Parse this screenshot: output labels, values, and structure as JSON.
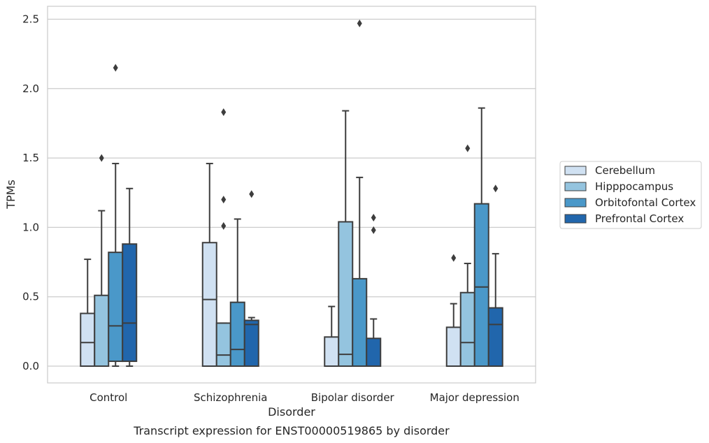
{
  "chart_data": {
    "type": "box",
    "caption": "Transcript expression for ENST00000519865 by disorder",
    "xlabel": "Disorder",
    "ylabel": "TPMs",
    "ylim": [
      -0.12,
      2.6
    ],
    "yticks": [
      "0.0",
      "0.5",
      "1.0",
      "1.5",
      "2.0",
      "2.5"
    ],
    "grid": true,
    "legend_position": "right",
    "categories": [
      "Control",
      "Schizophrenia",
      "Bipolar disorder",
      "Major depression"
    ],
    "series": [
      {
        "name": "Cerebellum",
        "color": "#d0e1f2",
        "boxes": [
          {
            "whislo": 0.0,
            "q1": 0.0,
            "med": 0.17,
            "q3": 0.38,
            "whishi": 0.77,
            "fliers": []
          },
          {
            "whislo": 0.0,
            "q1": 0.0,
            "med": 0.48,
            "q3": 0.89,
            "whishi": 1.46,
            "fliers": []
          },
          {
            "whislo": 0.0,
            "q1": 0.0,
            "med": 0.0,
            "q3": 0.21,
            "whishi": 0.43,
            "fliers": []
          },
          {
            "whislo": 0.0,
            "q1": 0.0,
            "med": 0.0,
            "q3": 0.28,
            "whishi": 0.45,
            "fliers": [
              0.78
            ]
          }
        ]
      },
      {
        "name": "Hipppocampus",
        "color": "#94c4df",
        "boxes": [
          {
            "whislo": 0.0,
            "q1": 0.0,
            "med": 0.0,
            "q3": 0.51,
            "whishi": 1.12,
            "fliers": [
              1.5
            ]
          },
          {
            "whislo": 0.0,
            "q1": 0.0,
            "med": 0.08,
            "q3": 0.31,
            "whishi": 0.31,
            "fliers": [
              1.83,
              1.2,
              1.01
            ]
          },
          {
            "whislo": 0.0,
            "q1": 0.0,
            "med": 0.085,
            "q3": 1.04,
            "whishi": 1.84,
            "fliers": []
          },
          {
            "whislo": 0.0,
            "q1": 0.0,
            "med": 0.17,
            "q3": 0.53,
            "whishi": 0.74,
            "fliers": [
              1.57
            ]
          }
        ]
      },
      {
        "name": "Orbitofontal Cortex",
        "color": "#4a98c9",
        "boxes": [
          {
            "whislo": 0.0,
            "q1": 0.035,
            "med": 0.29,
            "q3": 0.82,
            "whishi": 1.46,
            "fliers": [
              2.15
            ]
          },
          {
            "whislo": 0.0,
            "q1": 0.0,
            "med": 0.12,
            "q3": 0.46,
            "whishi": 1.06,
            "fliers": []
          },
          {
            "whislo": 0.0,
            "q1": 0.0,
            "med": 0.0,
            "q3": 0.63,
            "whishi": 1.36,
            "fliers": [
              2.47
            ]
          },
          {
            "whislo": 0.0,
            "q1": 0.0,
            "med": 0.57,
            "q3": 1.17,
            "whishi": 1.86,
            "fliers": []
          }
        ]
      },
      {
        "name": "Prefrontal Cortex",
        "color": "#2166ac",
        "boxes": [
          {
            "whislo": 0.0,
            "q1": 0.035,
            "med": 0.31,
            "q3": 0.88,
            "whishi": 1.28,
            "fliers": []
          },
          {
            "whislo": 0.0,
            "q1": 0.0,
            "med": 0.3,
            "q3": 0.33,
            "whishi": 0.35,
            "fliers": [
              1.24
            ]
          },
          {
            "whislo": 0.0,
            "q1": 0.0,
            "med": 0.0,
            "q3": 0.2,
            "whishi": 0.34,
            "fliers": [
              1.07,
              0.98
            ]
          },
          {
            "whislo": 0.0,
            "q1": 0.0,
            "med": 0.3,
            "q3": 0.42,
            "whishi": 0.81,
            "fliers": [
              1.28
            ]
          }
        ]
      }
    ]
  }
}
